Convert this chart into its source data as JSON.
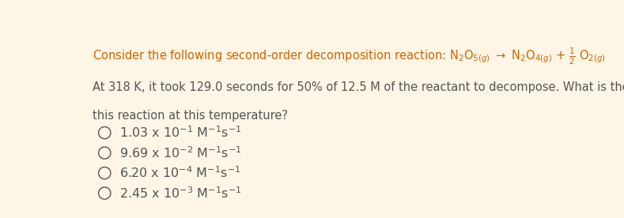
{
  "background_color": "#fdf5e6",
  "text_color": "#555555",
  "orange_color": "#cc6600",
  "line1_plain": "Consider the following second-order decomposition reaction: ",
  "line1_formula": "N₂O₅₊₏₎ → N₂O₄₊₏₎ + ½ O₂₊₏₎",
  "line2": "At 318 K, it took 129.0 seconds for 50% of 12.5 M of the reactant to decompose. What is the rate constant for",
  "line3": "this reaction at this temperature?",
  "options_main": [
    "1.03 x 10",
    "9.69 x 10",
    "6.20 x 10",
    "2.45 x 10"
  ],
  "options_exp": [
    "-1",
    "-2",
    "-4",
    "-3"
  ],
  "options_units": [
    " M⁻¹s⁻¹",
    " M⁻¹s⁻¹",
    " M⁻¹s⁻¹",
    " M⁻¹s⁻¹"
  ],
  "figsize": [
    7.89,
    2.76
  ],
  "dpi": 100,
  "font_size_main": 10.5,
  "font_size_options": 11.5
}
